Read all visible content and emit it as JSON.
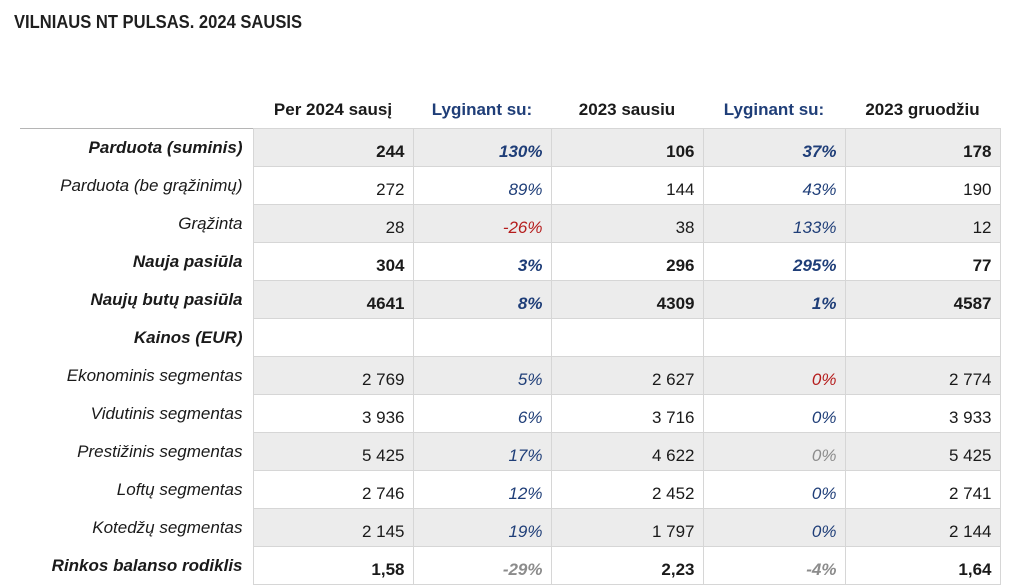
{
  "title": "VILNIAUS NT PULSAS. 2024 SAUSIS",
  "headers": {
    "label": "",
    "col1": "Per 2024 sausį",
    "col2": "Lyginant su:",
    "col3": "2023 sausiu",
    "col4": "Lyginant su:",
    "col5": "2023 gruodžiu"
  },
  "colors": {
    "positive": "#1f3e78",
    "negative": "#b51c1c",
    "neutral": "#8c8c8c",
    "shade": "#ececec"
  },
  "rows": [
    {
      "label": "Parduota (suminis)",
      "v1": "244",
      "p1": "130%",
      "v2": "106",
      "p2": "37%",
      "v3": "178"
    },
    {
      "label": "Parduota (be grąžinimų)",
      "v1": "272",
      "p1": "89%",
      "v2": "144",
      "p2": "43%",
      "v3": "190"
    },
    {
      "label": "Grąžinta",
      "v1": "28",
      "p1": "-26%",
      "v2": "38",
      "p2": "133%",
      "v3": "12"
    },
    {
      "label": "Nauja pasiūla",
      "v1": "304",
      "p1": "3%",
      "v2": "296",
      "p2": "295%",
      "v3": "77"
    },
    {
      "label": "Naujų butų pasiūla",
      "v1": "4641",
      "p1": "8%",
      "v2": "4309",
      "p2": "1%",
      "v3": "4587"
    },
    {
      "label": "Kainos (EUR)",
      "v1": "",
      "p1": "",
      "v2": "",
      "p2": "",
      "v3": ""
    },
    {
      "label": "Ekonominis segmentas",
      "v1": "2 769",
      "p1": "5%",
      "v2": "2 627",
      "p2": "0%",
      "v3": "2 774"
    },
    {
      "label": "Vidutinis segmentas",
      "v1": "3 936",
      "p1": "6%",
      "v2": "3 716",
      "p2": "0%",
      "v3": "3 933"
    },
    {
      "label": "Prestižinis segmentas",
      "v1": "5 425",
      "p1": "17%",
      "v2": "4 622",
      "p2": "0%",
      "v3": "5 425"
    },
    {
      "label": "Loftų segmentas",
      "v1": "2 746",
      "p1": "12%",
      "v2": "2 452",
      "p2": "0%",
      "v3": "2 741"
    },
    {
      "label": "Kotedžų segmentas",
      "v1": "2 145",
      "p1": "19%",
      "v2": "1 797",
      "p2": "0%",
      "v3": "2 144"
    },
    {
      "label": "Rinkos balanso rodiklis",
      "v1": "1,58",
      "p1": "-29%",
      "v2": "2,23",
      "p2": "-4%",
      "v3": "1,64"
    }
  ]
}
